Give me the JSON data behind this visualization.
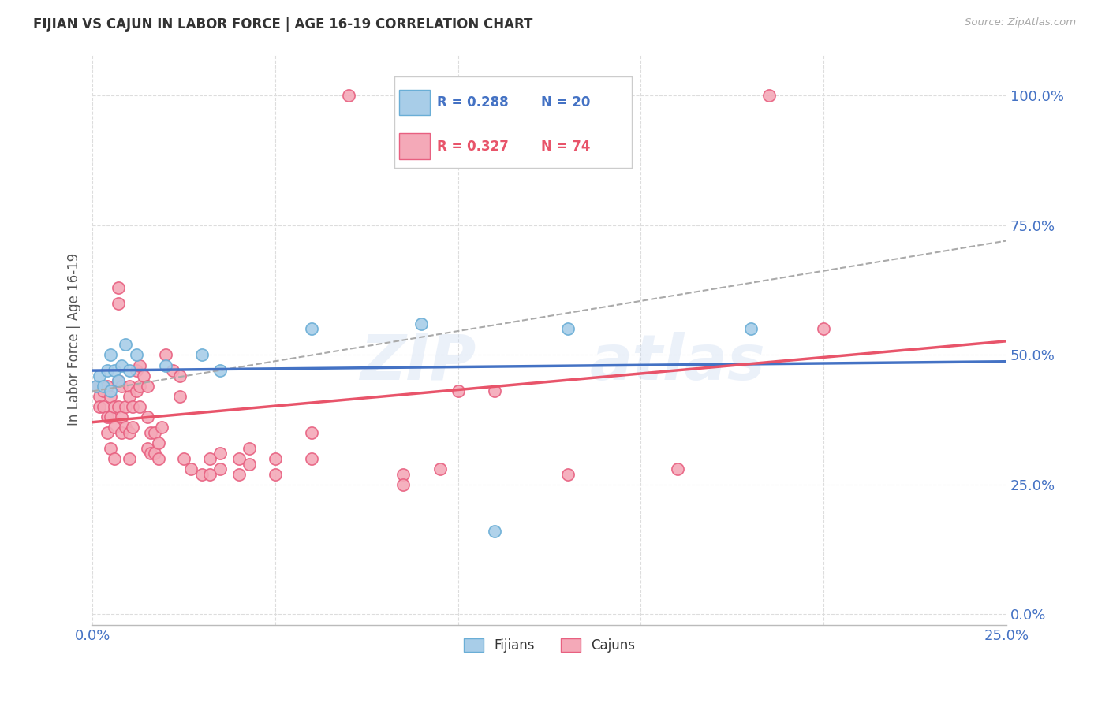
{
  "title": "FIJIAN VS CAJUN IN LABOR FORCE | AGE 16-19 CORRELATION CHART",
  "source": "Source: ZipAtlas.com",
  "ylabel": "In Labor Force | Age 16-19",
  "xlim": [
    0.0,
    0.25
  ],
  "ylim": [
    -0.02,
    1.08
  ],
  "ytick_labels": [
    "0.0%",
    "25.0%",
    "50.0%",
    "75.0%",
    "100.0%"
  ],
  "ytick_values": [
    0.0,
    0.25,
    0.5,
    0.75,
    1.0
  ],
  "xtick_values": [
    0.0,
    0.05,
    0.1,
    0.15,
    0.2,
    0.25
  ],
  "xtick_labels": [
    "0.0%",
    "",
    "",
    "",
    "",
    "25.0%"
  ],
  "fijian_color": "#a8cde8",
  "cajun_color": "#f4a9b8",
  "fijian_edge_color": "#6aaed6",
  "cajun_edge_color": "#e86080",
  "fijian_line_color": "#4472c4",
  "cajun_line_color": "#e8546a",
  "dashed_line_color": "#aaaaaa",
  "r_fijian": 0.288,
  "n_fijian": 20,
  "r_cajun": 0.327,
  "n_cajun": 74,
  "fijian_scatter": [
    [
      0.001,
      0.44
    ],
    [
      0.002,
      0.46
    ],
    [
      0.003,
      0.44
    ],
    [
      0.004,
      0.47
    ],
    [
      0.005,
      0.5
    ],
    [
      0.005,
      0.43
    ],
    [
      0.006,
      0.47
    ],
    [
      0.007,
      0.45
    ],
    [
      0.008,
      0.48
    ],
    [
      0.009,
      0.52
    ],
    [
      0.01,
      0.47
    ],
    [
      0.012,
      0.5
    ],
    [
      0.02,
      0.48
    ],
    [
      0.03,
      0.5
    ],
    [
      0.035,
      0.47
    ],
    [
      0.06,
      0.55
    ],
    [
      0.09,
      0.56
    ],
    [
      0.11,
      0.16
    ],
    [
      0.13,
      0.55
    ],
    [
      0.18,
      0.55
    ]
  ],
  "cajun_scatter": [
    [
      0.001,
      0.44
    ],
    [
      0.002,
      0.42
    ],
    [
      0.002,
      0.4
    ],
    [
      0.003,
      0.43
    ],
    [
      0.003,
      0.4
    ],
    [
      0.004,
      0.44
    ],
    [
      0.004,
      0.38
    ],
    [
      0.004,
      0.35
    ],
    [
      0.005,
      0.42
    ],
    [
      0.005,
      0.38
    ],
    [
      0.005,
      0.32
    ],
    [
      0.006,
      0.4
    ],
    [
      0.006,
      0.36
    ],
    [
      0.006,
      0.3
    ],
    [
      0.007,
      0.63
    ],
    [
      0.007,
      0.6
    ],
    [
      0.007,
      0.45
    ],
    [
      0.007,
      0.4
    ],
    [
      0.008,
      0.44
    ],
    [
      0.008,
      0.38
    ],
    [
      0.008,
      0.35
    ],
    [
      0.009,
      0.4
    ],
    [
      0.009,
      0.36
    ],
    [
      0.01,
      0.44
    ],
    [
      0.01,
      0.42
    ],
    [
      0.01,
      0.35
    ],
    [
      0.01,
      0.3
    ],
    [
      0.011,
      0.4
    ],
    [
      0.011,
      0.36
    ],
    [
      0.012,
      0.47
    ],
    [
      0.012,
      0.43
    ],
    [
      0.013,
      0.48
    ],
    [
      0.013,
      0.44
    ],
    [
      0.013,
      0.4
    ],
    [
      0.014,
      0.46
    ],
    [
      0.015,
      0.44
    ],
    [
      0.015,
      0.38
    ],
    [
      0.015,
      0.32
    ],
    [
      0.016,
      0.35
    ],
    [
      0.016,
      0.31
    ],
    [
      0.017,
      0.35
    ],
    [
      0.017,
      0.31
    ],
    [
      0.018,
      0.33
    ],
    [
      0.018,
      0.3
    ],
    [
      0.019,
      0.36
    ],
    [
      0.02,
      0.5
    ],
    [
      0.022,
      0.47
    ],
    [
      0.024,
      0.46
    ],
    [
      0.024,
      0.42
    ],
    [
      0.025,
      0.3
    ],
    [
      0.027,
      0.28
    ],
    [
      0.03,
      0.27
    ],
    [
      0.032,
      0.3
    ],
    [
      0.032,
      0.27
    ],
    [
      0.035,
      0.31
    ],
    [
      0.035,
      0.28
    ],
    [
      0.04,
      0.3
    ],
    [
      0.04,
      0.27
    ],
    [
      0.043,
      0.32
    ],
    [
      0.043,
      0.29
    ],
    [
      0.05,
      0.3
    ],
    [
      0.05,
      0.27
    ],
    [
      0.06,
      0.35
    ],
    [
      0.06,
      0.3
    ],
    [
      0.07,
      1.0
    ],
    [
      0.085,
      0.27
    ],
    [
      0.085,
      0.25
    ],
    [
      0.095,
      0.28
    ],
    [
      0.1,
      0.43
    ],
    [
      0.11,
      0.43
    ],
    [
      0.13,
      0.27
    ],
    [
      0.16,
      0.28
    ],
    [
      0.185,
      1.0
    ],
    [
      0.2,
      0.55
    ]
  ],
  "grid_color": "#dddddd",
  "background_color": "#ffffff",
  "tick_label_color": "#4472c4",
  "legend_text_color_fijian": "#4472c4",
  "legend_text_color_cajun": "#e8546a"
}
